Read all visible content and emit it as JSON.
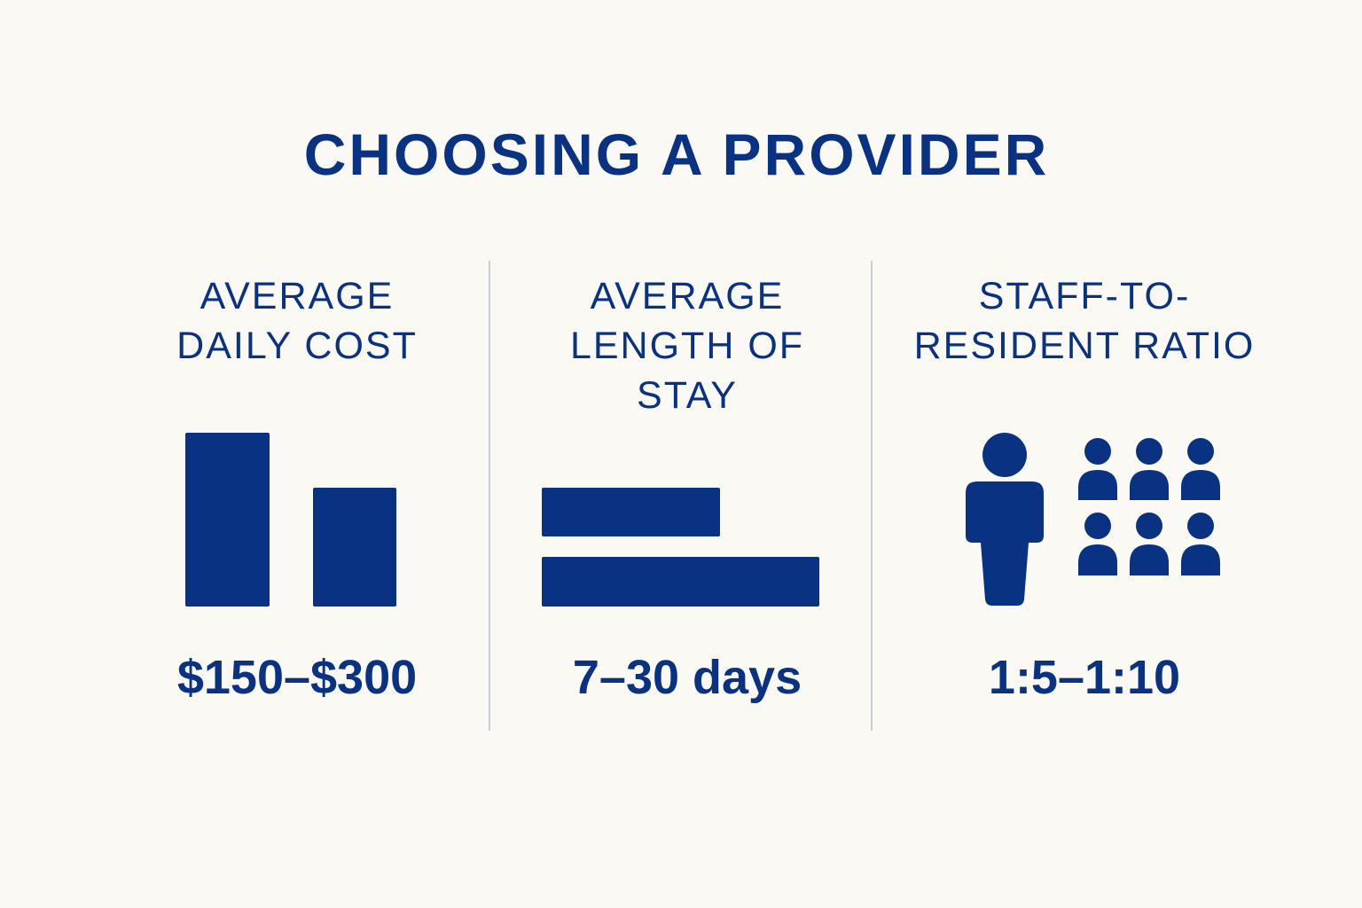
{
  "title": "CHOOSING A PROVIDER",
  "accent_color": "#0a3282",
  "divider_color": "#c8ccd3",
  "background_color": "#faf9f4",
  "columns": [
    {
      "label": "AVERAGE\nDAILY COST",
      "value": "$150–$300",
      "icon": "bar-chart-icon"
    },
    {
      "label": "AVERAGE\nLENGTH OF\nSTAY",
      "value": "7–30 days",
      "icon": "horizontal-bars-icon"
    },
    {
      "label": "STAFF-TO-\nRESIDENT RATIO",
      "value": "1:5–1:10",
      "icon": "staff-residents-icon"
    }
  ]
}
